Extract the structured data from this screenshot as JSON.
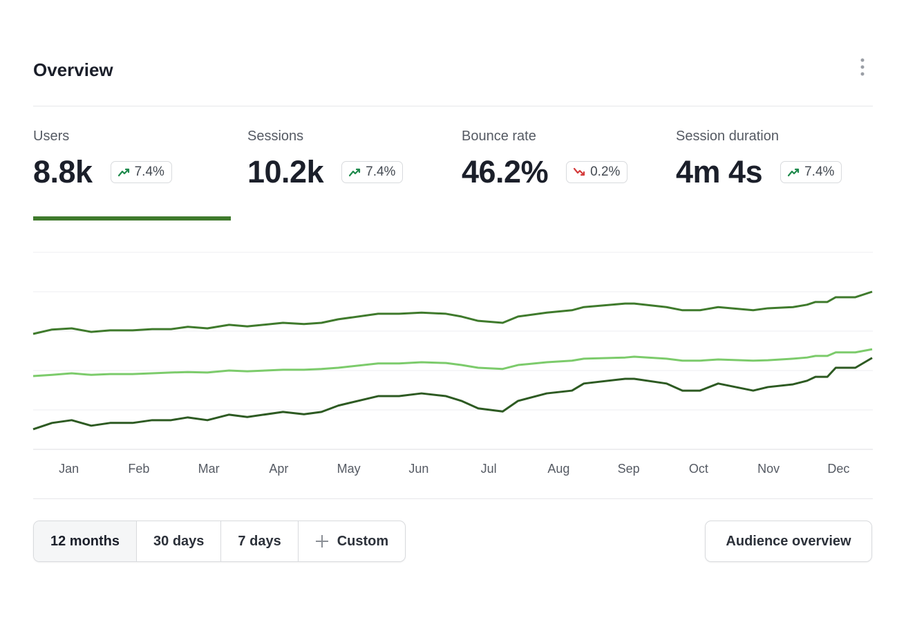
{
  "header": {
    "title": "Overview"
  },
  "metrics": [
    {
      "label": "Users",
      "value": "8.8k",
      "change": "7.4%",
      "direction": "up"
    },
    {
      "label": "Sessions",
      "value": "10.2k",
      "change": "7.4%",
      "direction": "up"
    },
    {
      "label": "Bounce rate",
      "value": "46.2%",
      "change": "0.2%",
      "direction": "down"
    },
    {
      "label": "Session duration",
      "value": "4m 4s",
      "change": "7.4%",
      "direction": "up"
    }
  ],
  "selected_metric": 0,
  "chart_data": {
    "type": "line",
    "x": [
      -0.51,
      -0.24,
      0.04,
      0.32,
      0.59,
      0.91,
      1.19,
      1.46,
      1.7,
      1.98,
      2.29,
      2.55,
      3.06,
      3.36,
      3.61,
      3.85,
      4.42,
      4.72,
      5.04,
      5.39,
      5.61,
      5.85,
      6.2,
      6.42,
      6.83,
      7.19,
      7.36,
      7.95,
      8.08,
      8.54,
      8.77,
      9.02,
      9.28,
      9.78,
      9.99,
      10.35,
      10.55,
      10.67,
      10.84,
      10.96,
      11.24,
      11.48
    ],
    "series": [
      {
        "color": "#3f7a2c",
        "values": [
          2.93,
          3.04,
          3.07,
          2.98,
          3.02,
          3.02,
          3.05,
          3.05,
          3.11,
          3.07,
          3.16,
          3.12,
          3.21,
          3.18,
          3.21,
          3.3,
          3.44,
          3.44,
          3.47,
          3.44,
          3.37,
          3.26,
          3.21,
          3.37,
          3.47,
          3.53,
          3.61,
          3.7,
          3.7,
          3.61,
          3.53,
          3.53,
          3.61,
          3.53,
          3.58,
          3.61,
          3.67,
          3.74,
          3.74,
          3.86,
          3.86,
          4.0
        ]
      },
      {
        "color": "#7ccb6b",
        "values": [
          1.86,
          1.89,
          1.93,
          1.89,
          1.91,
          1.91,
          1.93,
          1.95,
          1.96,
          1.95,
          2.0,
          1.98,
          2.02,
          2.02,
          2.04,
          2.07,
          2.18,
          2.18,
          2.21,
          2.19,
          2.14,
          2.07,
          2.04,
          2.14,
          2.21,
          2.25,
          2.3,
          2.33,
          2.35,
          2.3,
          2.25,
          2.25,
          2.28,
          2.25,
          2.26,
          2.3,
          2.33,
          2.37,
          2.37,
          2.46,
          2.46,
          2.54
        ]
      },
      {
        "color": "#2d5a22",
        "values": [
          0.51,
          0.67,
          0.74,
          0.6,
          0.67,
          0.67,
          0.74,
          0.74,
          0.81,
          0.74,
          0.88,
          0.82,
          0.95,
          0.89,
          0.95,
          1.11,
          1.35,
          1.35,
          1.42,
          1.35,
          1.23,
          1.04,
          0.96,
          1.23,
          1.42,
          1.49,
          1.67,
          1.79,
          1.79,
          1.67,
          1.49,
          1.49,
          1.67,
          1.49,
          1.58,
          1.65,
          1.74,
          1.84,
          1.84,
          2.07,
          2.07,
          2.32
        ]
      }
    ],
    "xlim": [
      -0.51,
      11.49
    ],
    "xticks": [
      {
        "value": 0,
        "label": "Jan"
      },
      {
        "value": 1,
        "label": "Feb"
      },
      {
        "value": 2,
        "label": "Mar"
      },
      {
        "value": 3,
        "label": "Apr"
      },
      {
        "value": 4,
        "label": "May"
      },
      {
        "value": 5,
        "label": "Jun"
      },
      {
        "value": 6,
        "label": "Jul"
      },
      {
        "value": 7,
        "label": "Aug"
      },
      {
        "value": 8,
        "label": "Sep"
      },
      {
        "value": 9,
        "label": "Oct"
      },
      {
        "value": 10,
        "label": "Nov"
      },
      {
        "value": 11,
        "label": "Dec"
      }
    ],
    "ylim": [
      0,
      5
    ],
    "yticks": [
      0,
      1,
      2,
      3,
      4,
      5
    ],
    "grid": true
  },
  "range_buttons": [
    "12 months",
    "30 days",
    "7 days",
    "Custom"
  ],
  "active_range": 0,
  "action_button": "Audience overview"
}
